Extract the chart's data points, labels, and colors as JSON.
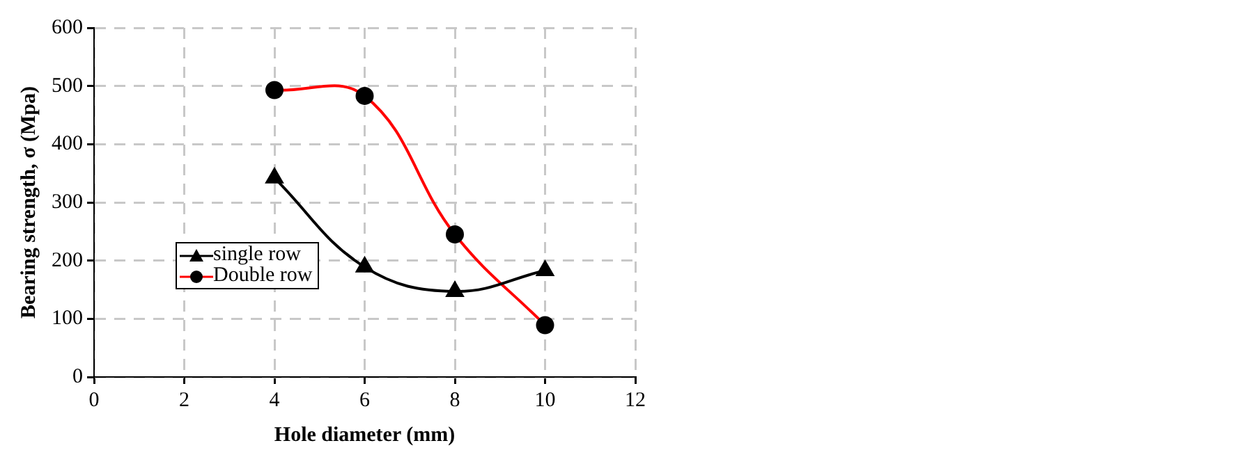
{
  "chart_data": {
    "type": "line",
    "xlabel": "Hole diameter (mm)",
    "ylabel": "Bearing strength, σ (Mpa)",
    "x": [
      4,
      6,
      8,
      10
    ],
    "series": [
      {
        "name": "single row",
        "color": "#000000",
        "marker": "triangle",
        "values": [
          342,
          189,
          147,
          183
        ]
      },
      {
        "name": "Double row",
        "color": "#ff0000",
        "marker": "circle",
        "values": [
          493,
          483,
          245,
          89
        ]
      }
    ],
    "xlim": [
      0,
      12
    ],
    "xticks": [
      0,
      2,
      4,
      6,
      8,
      10,
      12
    ],
    "ylim": [
      0,
      600
    ],
    "yticks": [
      0,
      100,
      200,
      300,
      400,
      500,
      600
    ],
    "grid": true,
    "legend": "left",
    "line_style": "solid"
  }
}
